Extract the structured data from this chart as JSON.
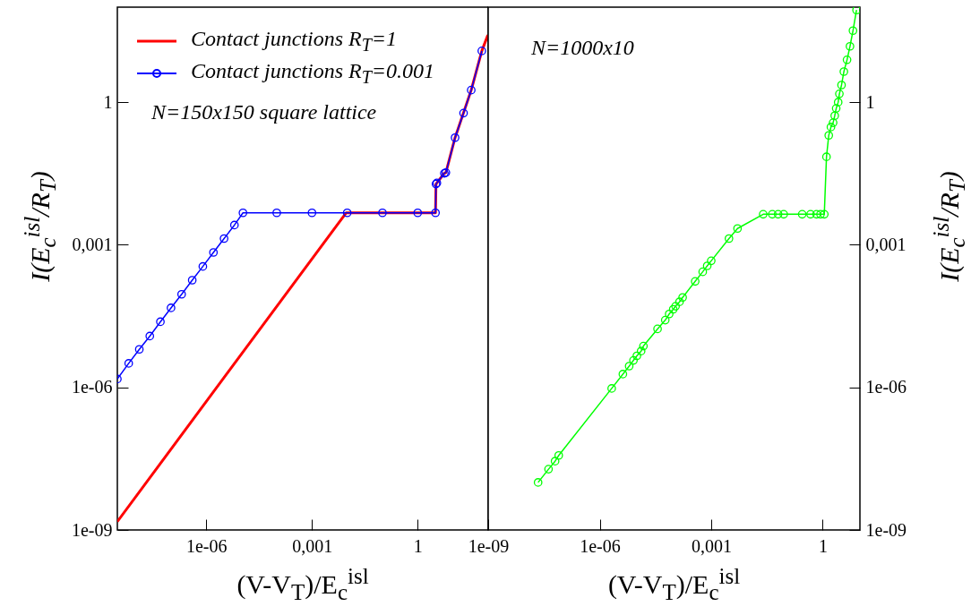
{
  "chart_data": [
    {
      "type": "line",
      "xlabel": "(V-V$_{T}$)/E$_{c}$$^{isl}$",
      "ylabel": "I(E$_{c}$$^{isl}$/R$_{T}$)",
      "log": "xy",
      "xlim": [
        3e-09,
        100
      ],
      "ylim": [
        1e-09,
        100
      ],
      "xticks": [
        {
          "value": 1e-06,
          "label": "1e-06"
        },
        {
          "value": 0.001,
          "label": "0,001"
        },
        1
      ],
      "yticks": [
        {
          "value": 1e-09,
          "label": "1e-09"
        },
        {
          "value": 1e-06,
          "label": "1e-06"
        },
        {
          "value": 0.001,
          "label": "0,001"
        },
        1
      ],
      "legend": "top left",
      "grid": false,
      "annotations": [
        "N=150x150  square lattice"
      ],
      "series": [
        {
          "name": "Contact junctions  R$_{T}$=1",
          "color": "#ff0000",
          "marker": "none",
          "x": [
            3e-09,
            0.0093,
            3.2,
            3.3,
            5.7,
            6.3,
            11.5,
            33,
            66,
            98
          ],
          "values": [
            1.5e-09,
            0.0047,
            0.0047,
            0.019,
            0.032,
            0.033,
            0.18,
            1.8,
            12,
            26
          ]
        },
        {
          "name": "Contact junctions  R$_{T}$=0.001",
          "color": "#0000ff",
          "marker": "circle",
          "x": [
            3e-09,
            6.3e-09,
            1.26e-08,
            2.5e-08,
            5e-08,
            1e-07,
            2e-07,
            4e-07,
            8e-07,
            1.6e-06,
            3.2e-06,
            6.3e-06,
            1.1e-05,
            0.0001,
            0.001,
            0.01,
            0.1,
            1,
            3.2,
            3.3,
            3.5,
            5.7,
            6.3,
            11.5,
            20,
            33,
            66
          ],
          "values": [
            1.5e-06,
            3.2e-06,
            6.3e-06,
            1.2e-05,
            2.4e-05,
            4.7e-05,
            9.1e-05,
            0.00018,
            0.00035,
            0.00069,
            0.00135,
            0.0026,
            0.0047,
            0.0047,
            0.0047,
            0.0047,
            0.0047,
            0.0047,
            0.0047,
            0.019,
            0.02,
            0.032,
            0.033,
            0.18,
            0.59,
            1.8,
            12
          ]
        }
      ]
    },
    {
      "type": "line",
      "xlabel": "(V-V$_{T}$)/E$_{c}$$^{isl}$",
      "ylabel": "I(E$_{c}$$^{isl}$/R$_{T}$)",
      "log": "xy",
      "xlim": [
        1e-09,
        10
      ],
      "ylim": [
        1e-09,
        100
      ],
      "xticks": [
        {
          "value": 1e-09,
          "label": "1e-09"
        },
        {
          "value": 1e-06,
          "label": "1e-06"
        },
        {
          "value": 0.001,
          "label": "0,001"
        },
        1
      ],
      "yticks": [
        {
          "value": 1e-09,
          "label": "1e-09"
        },
        {
          "value": 1e-06,
          "label": "1e-06"
        },
        {
          "value": 0.001,
          "label": "0,001"
        },
        1
      ],
      "grid": false,
      "annotations": [
        "N=1000x10"
      ],
      "series": [
        {
          "color": "#00ff00",
          "marker": "circle",
          "x": [
            2.2e-08,
            4.2e-08,
            6.3e-08,
            7.9e-08,
            2.1e-06,
            4.2e-06,
            6.2e-06,
            8.1e-06,
            1e-05,
            1.3e-05,
            1.5e-05,
            3.6e-05,
            5.8e-05,
            7.4e-05,
            9.5e-05,
            0.00011,
            0.00014,
            0.00017,
            0.00037,
            0.00059,
            0.00078,
            0.001,
            0.003,
            0.0051,
            0.025,
            0.044,
            0.063,
            0.089,
            0.28,
            0.47,
            0.68,
            0.87,
            1.1,
            1.26,
            1.45,
            1.66,
            1.9,
            2.1,
            2.3,
            2.6,
            2.8,
            3.2,
            3.7,
            4.5,
            5.4,
            6.5,
            8.1
          ],
          "values": [
            1e-08,
            1.9e-08,
            2.8e-08,
            3.7e-08,
            9.5e-07,
            1.9e-06,
            2.8e-06,
            3.7e-06,
            4.6e-06,
            5.8e-06,
            7.4e-06,
            1.7e-05,
            2.6e-05,
            3.5e-05,
            4.4e-05,
            5.1e-05,
            6.3e-05,
            7.8e-05,
            0.00017,
            0.00027,
            0.00036,
            0.00046,
            0.00135,
            0.0022,
            0.0044,
            0.0044,
            0.0044,
            0.0044,
            0.0044,
            0.0044,
            0.0044,
            0.0044,
            0.0044,
            0.071,
            0.2,
            0.3,
            0.37,
            0.52,
            0.74,
            1,
            1.5,
            2.3,
            4.4,
            7.8,
            15,
            32,
            87
          ]
        }
      ]
    }
  ]
}
